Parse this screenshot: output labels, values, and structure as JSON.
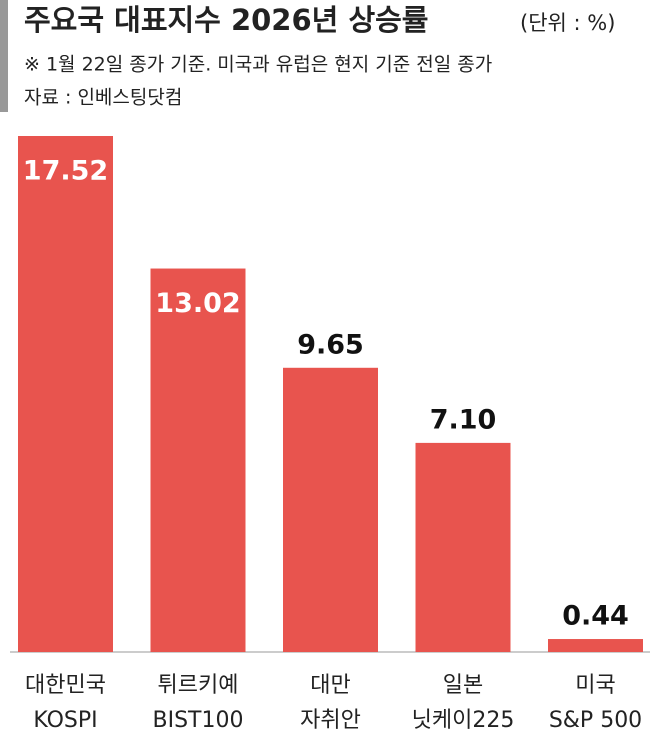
{
  "chart_data": {
    "type": "bar",
    "title": "주요국 대표지수 2026년 상승률",
    "unit": "(단위 : %)",
    "subtitle": "※ 1월 22일 종가 기준. 미국과 유럽은 현지 기준 전일 종가",
    "source": "자료 : 인베스팅닷컴",
    "categories": [
      [
        "대한민국",
        "KOSPI"
      ],
      [
        "튀르키예",
        "BIST100"
      ],
      [
        "대만",
        "자취안"
      ],
      [
        "일본",
        "닛케이225"
      ],
      [
        "미국",
        "S&P 500"
      ]
    ],
    "values": [
      17.52,
      13.02,
      9.65,
      7.1,
      0.44
    ],
    "value_labels": [
      "17.52",
      "13.02",
      "9.65",
      "7.10",
      "0.44"
    ],
    "color": "#e8544e"
  }
}
